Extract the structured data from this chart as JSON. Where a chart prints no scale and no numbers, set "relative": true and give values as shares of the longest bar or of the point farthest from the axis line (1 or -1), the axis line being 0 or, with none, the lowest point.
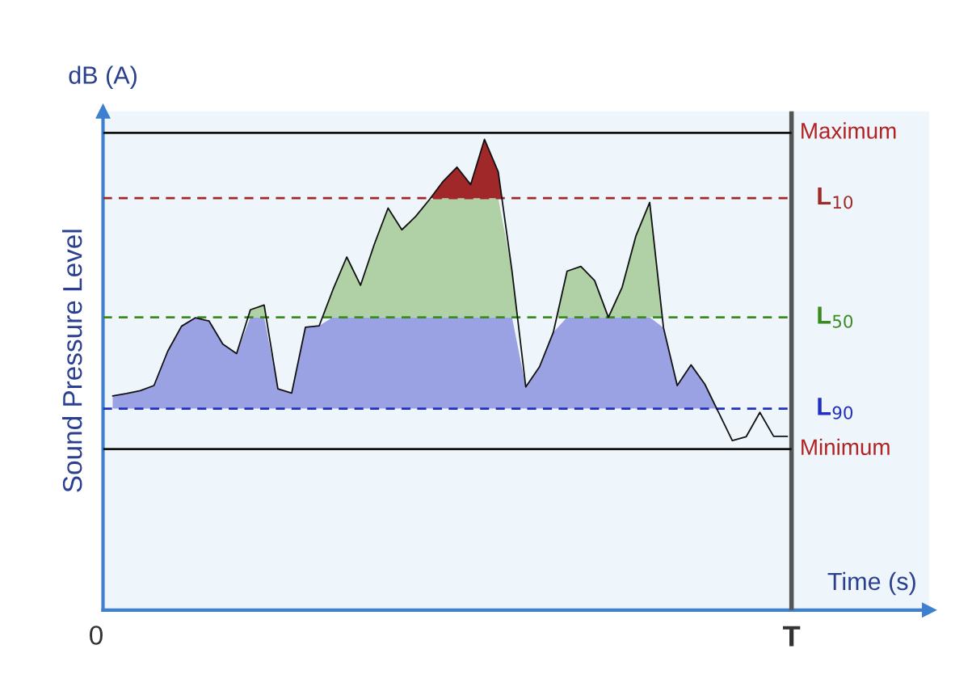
{
  "chart_data": {
    "type": "line",
    "relative": true,
    "ylabel": "Sound Pressure Level",
    "xlabel": "Time (s)",
    "annotations": [
      "dB (A)",
      "0",
      "T"
    ],
    "categories": [
      null,
      null,
      null,
      null,
      null,
      null,
      null,
      null,
      null,
      null,
      null,
      null,
      null,
      null,
      null,
      null,
      null,
      null,
      null,
      null,
      null,
      null,
      null,
      null,
      null,
      null,
      null,
      null,
      null,
      null,
      null,
      null,
      null,
      null,
      null,
      null,
      null,
      null,
      null,
      null,
      null,
      null,
      null,
      null,
      null,
      null,
      null,
      null,
      null,
      null
    ],
    "series": [
      {
        "color": "#111111",
        "values": [
          0.455,
          0.46,
          0.466,
          0.477,
          0.55,
          0.603,
          0.621,
          0.614,
          0.565,
          0.545,
          0.638,
          0.648,
          0.47,
          0.461,
          0.601,
          0.604,
          0.681,
          0.75,
          0.69,
          0.777,
          0.854,
          0.808,
          0.836,
          0.872,
          0.911,
          0.941,
          0.904,
          1.0,
          0.931,
          0.72,
          0.474,
          0.517,
          0.59,
          0.72,
          0.73,
          0.7,
          0.622,
          0.686,
          0.795,
          0.866,
          0.6,
          0.477,
          0.521,
          0.48,
          0.42,
          0.36,
          0.368,
          0.42,
          0.369,
          0.369
        ]
      }
    ],
    "ref_lines": [
      {
        "axis": "y",
        "value": 1.014,
        "label": "Maximum",
        "color": "#111111",
        "line_style": "solid"
      },
      {
        "axis": "y",
        "value": 0.875,
        "label": "L$_{10}$",
        "color": "#a02828",
        "line_style": "dashed"
      },
      {
        "axis": "y",
        "value": 0.622,
        "label": "L$_{50}$",
        "color": "#3a8a20",
        "line_style": "dashed"
      },
      {
        "axis": "y",
        "value": 0.428,
        "label": "L$_{90}$",
        "color": "#2030c0",
        "line_style": "dashed"
      },
      {
        "axis": "y",
        "value": 0.342,
        "label": "Minimum",
        "color": "#111111",
        "line_style": "solid"
      }
    ],
    "marker": "none",
    "line_style": "solid"
  }
}
